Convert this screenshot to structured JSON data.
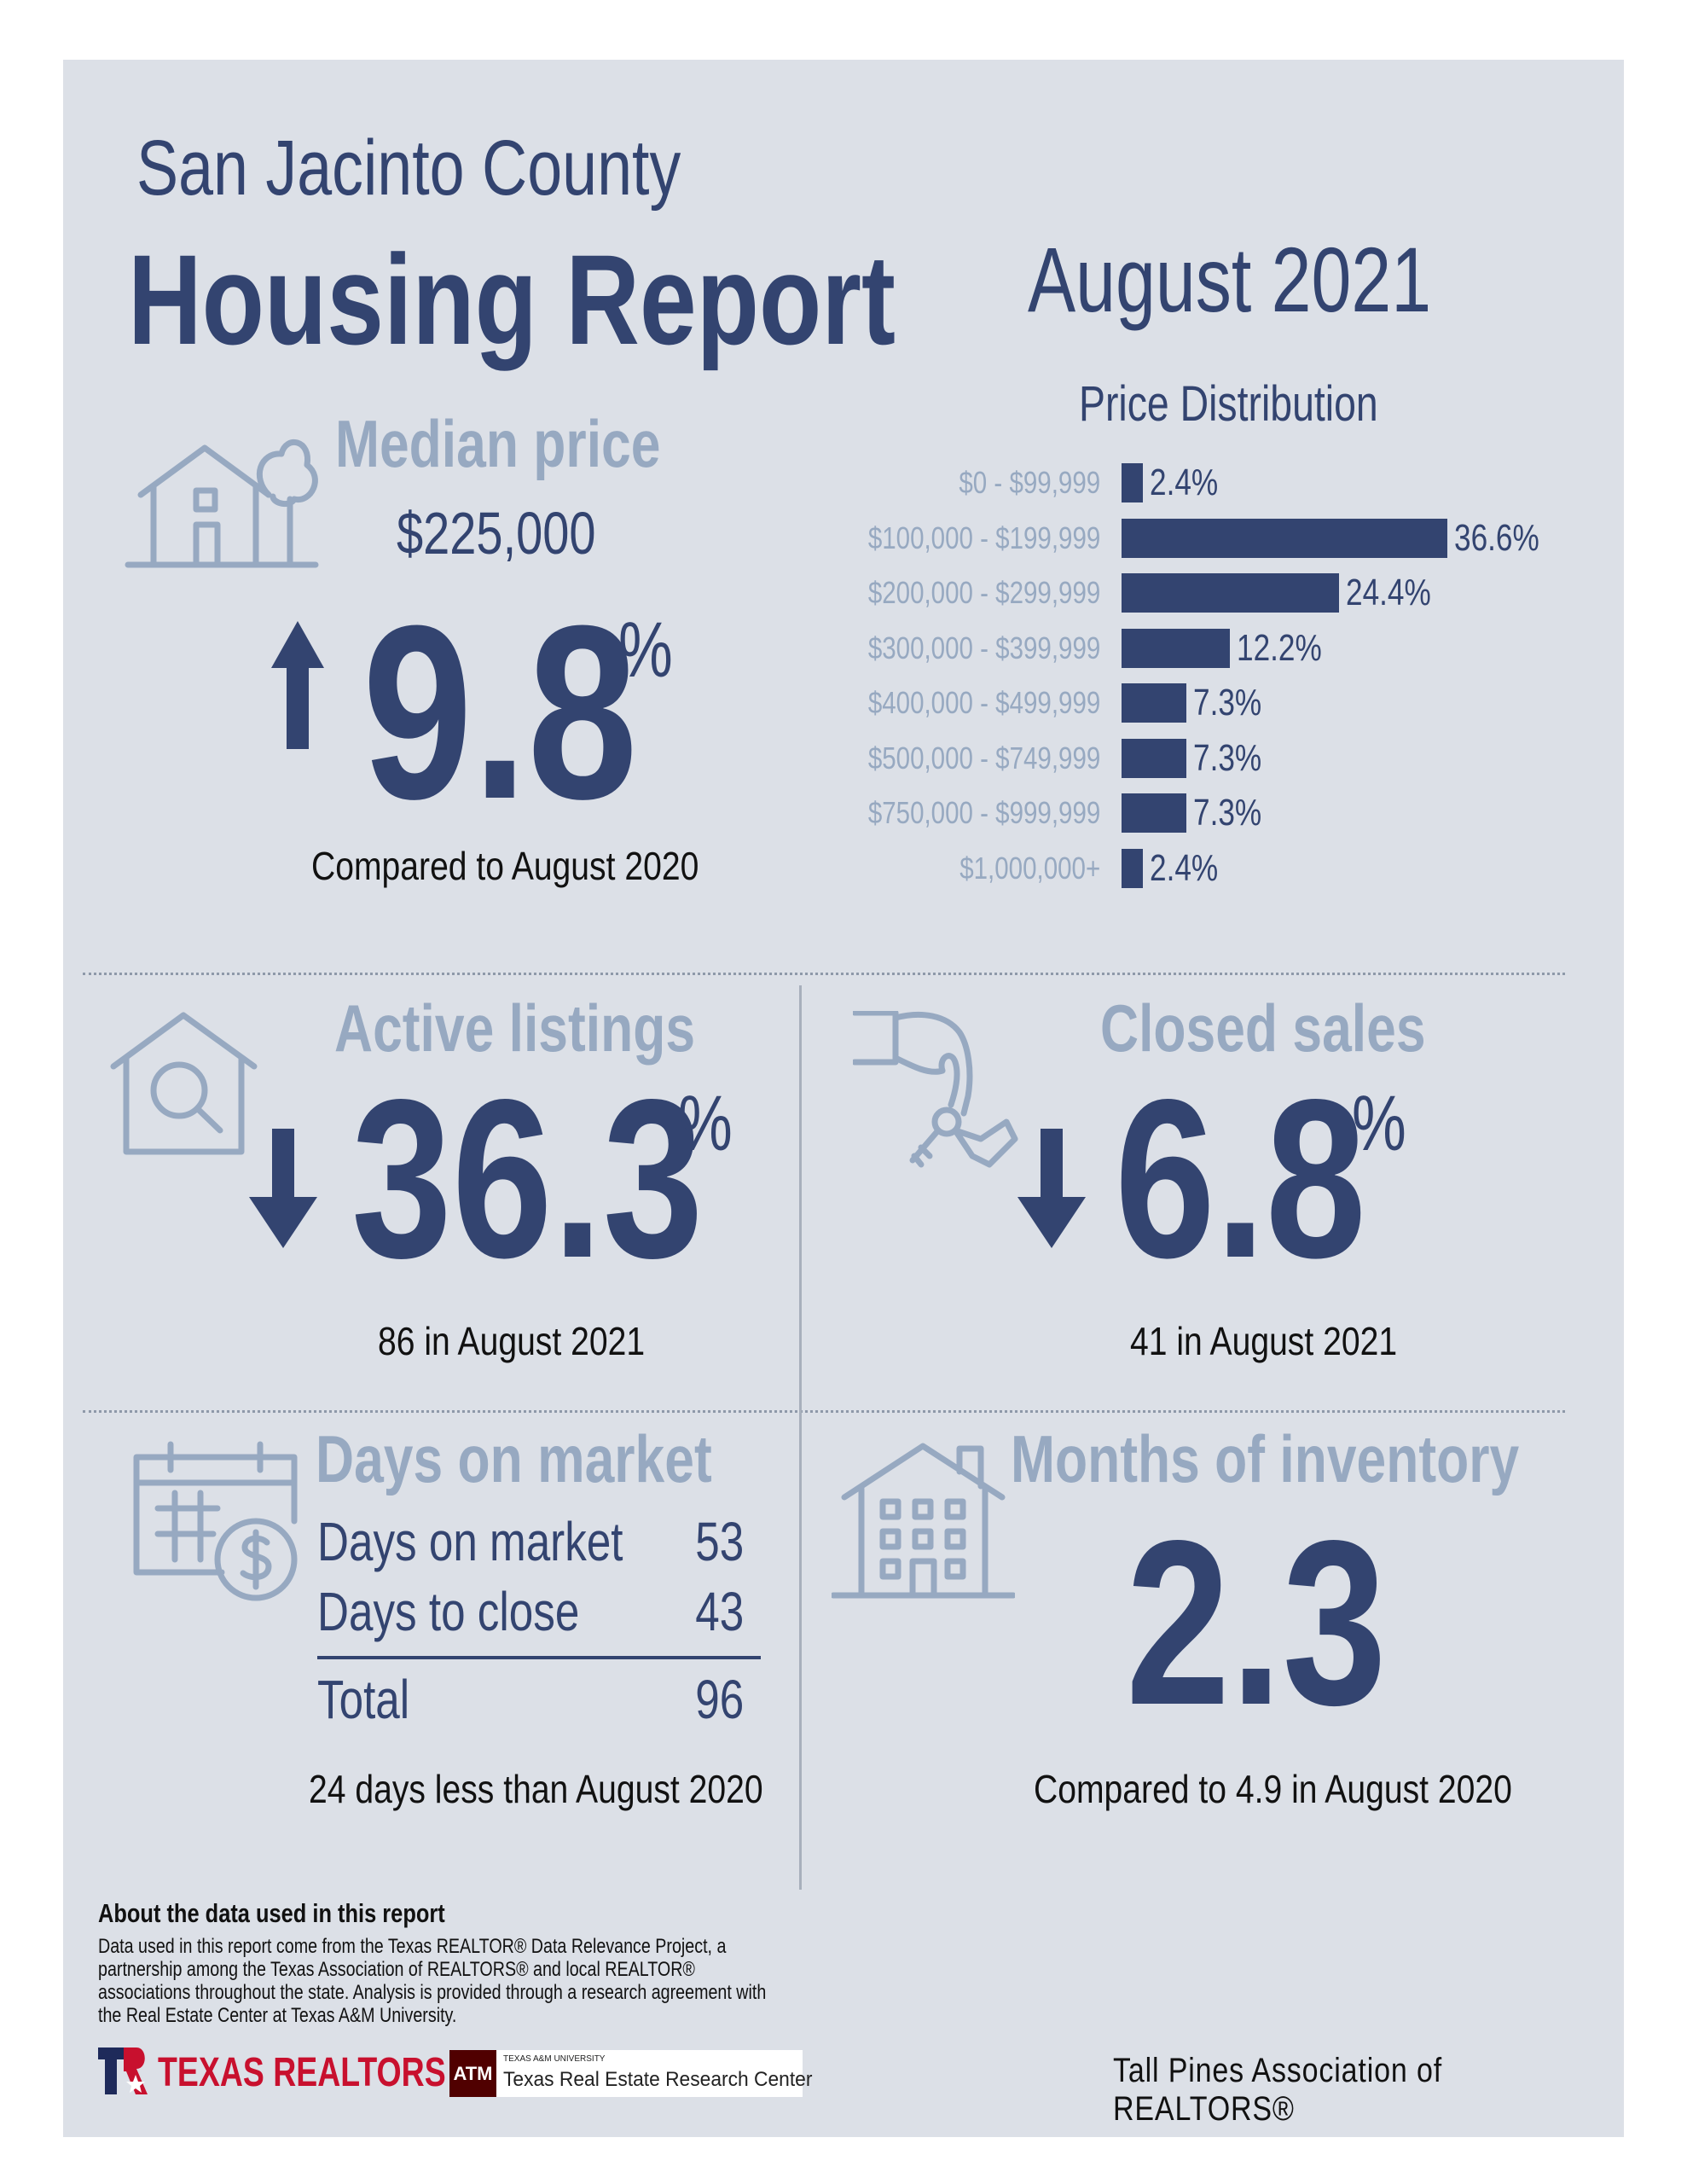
{
  "header": {
    "county": "San Jacinto County",
    "title": "Housing Report",
    "month": "August 2021"
  },
  "median_price": {
    "label": "Median price",
    "value": "$225,000",
    "change": "9.8",
    "unit": "%",
    "direction": "up",
    "note": "Compared to August 2020"
  },
  "chart_data": {
    "type": "bar",
    "title": "Price Distribution",
    "orientation": "horizontal",
    "categories": [
      "$0 - $99,999",
      "$100,000 - $199,999",
      "$200,000 - $299,999",
      "$300,000 - $399,999",
      "$400,000 - $499,999",
      "$500,000 - $749,999",
      "$750,000 - $999,999",
      "$1,000,000+"
    ],
    "values": [
      2.4,
      36.6,
      24.4,
      12.2,
      7.3,
      7.3,
      7.3,
      2.4
    ],
    "value_labels": [
      "2.4%",
      "36.6%",
      "24.4%",
      "12.2%",
      "7.3%",
      "7.3%",
      "7.3%",
      "2.4%"
    ],
    "xlim": [
      0,
      36.6
    ],
    "bar_color": "#334470"
  },
  "active_listings": {
    "label": "Active listings",
    "change": "36.3",
    "unit": "%",
    "direction": "down",
    "note": "86 in August 2021"
  },
  "closed_sales": {
    "label": "Closed sales",
    "change": "6.8",
    "unit": "%",
    "direction": "down",
    "note": "41 in August 2021"
  },
  "days_on_market": {
    "label": "Days on market",
    "rows": [
      {
        "label": "Days on market",
        "value": "53"
      },
      {
        "label": "Days to close",
        "value": "43"
      }
    ],
    "total_label": "Total",
    "total_value": "96",
    "note": "24 days less than August 2020"
  },
  "months_inventory": {
    "label": "Months of inventory",
    "value": "2.3",
    "note": "Compared to 4.9 in August 2020"
  },
  "about": {
    "title": "About the data used in this report",
    "text": "Data used in this report come from the Texas REALTOR® Data Relevance Project, a partnership among the Texas Association of REALTORS® and local REALTOR® associations throughout the state. Analysis is provided through a research agreement with the Real Estate Center at Texas A&M University."
  },
  "footer": {
    "texas_realtors": "TEXAS REALTORS",
    "tamu_small": "TEXAS A&M UNIVERSITY",
    "tamu_logo": "ATM",
    "tamu_center": "Texas Real Estate Research Center",
    "association": "Tall Pines Association of REALTORS®"
  },
  "colors": {
    "background": "#dce0e7",
    "navy": "#334470",
    "light_blue": "#97a9c1",
    "red": "#c8102e"
  },
  "icons": [
    "house-tree-icon",
    "up-arrow-icon",
    "house-search-icon",
    "down-arrow-icon",
    "hand-keys-icon",
    "calendar-dollar-icon",
    "building-icon"
  ]
}
